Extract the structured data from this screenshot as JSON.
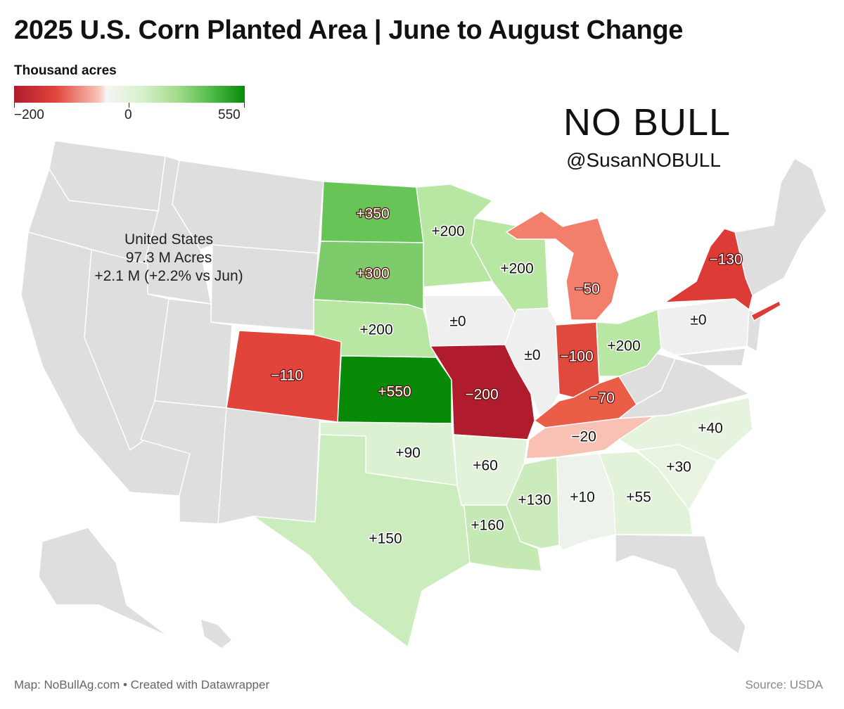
{
  "title": "2025 U.S. Corn Planted Area | June to August Change",
  "legend": {
    "title": "Thousand acres",
    "min_label": "−200",
    "mid_label": "0",
    "max_label": "550",
    "min": -200,
    "max": 550
  },
  "brand": {
    "name": "NO BULL",
    "handle": "@SusanNOBULL"
  },
  "summary": {
    "line1": "United States",
    "line2": "97.3 M Acres",
    "line3": "+2.1 M (+2.2% vs Jun)"
  },
  "colors": {
    "no_data": "#dedede",
    "no_change": "#efefef",
    "border": "#ffffff"
  },
  "states": [
    {
      "id": "ND",
      "label": "+350",
      "value": 350,
      "color": "#67c457"
    },
    {
      "id": "SD",
      "label": "+300",
      "value": 300,
      "color": "#7ecb6c"
    },
    {
      "id": "MN",
      "label": "+200",
      "value": 200,
      "color": "#b8e6a3"
    },
    {
      "id": "WI",
      "label": "+200",
      "value": 200,
      "color": "#b8e6a3"
    },
    {
      "id": "NE",
      "label": "+200",
      "value": 200,
      "color": "#b8e6a3"
    },
    {
      "id": "OH",
      "label": "+200",
      "value": 200,
      "color": "#b8e6a3"
    },
    {
      "id": "KS",
      "label": "+550",
      "value": 550,
      "color": "#088a08"
    },
    {
      "id": "IA",
      "label": "±0",
      "value": 0,
      "color": "#efefef"
    },
    {
      "id": "IL",
      "label": "±0",
      "value": 0,
      "color": "#efefef"
    },
    {
      "id": "PA",
      "label": "±0",
      "value": 0,
      "color": "#efefef"
    },
    {
      "id": "MO",
      "label": "−200",
      "value": -200,
      "color": "#b01c2e"
    },
    {
      "id": "CO",
      "label": "−110",
      "value": -110,
      "color": "#e1443a"
    },
    {
      "id": "IN",
      "label": "−100",
      "value": -100,
      "color": "#e04a3c"
    },
    {
      "id": "NY",
      "label": "−130",
      "value": -130,
      "color": "#dd3b35"
    },
    {
      "id": "KY",
      "label": "−70",
      "value": -70,
      "color": "#ea5e48"
    },
    {
      "id": "MI",
      "label": "−50",
      "value": -50,
      "color": "#f27f6b"
    },
    {
      "id": "TN",
      "label": "−20",
      "value": -20,
      "color": "#f9c1b3"
    },
    {
      "id": "OK",
      "label": "+90",
      "value": 90,
      "color": "#dcf1d1"
    },
    {
      "id": "AR",
      "label": "+60",
      "value": 60,
      "color": "#e3f3d9"
    },
    {
      "id": "MS",
      "label": "+130",
      "value": 130,
      "color": "#cbebbc"
    },
    {
      "id": "AL",
      "label": "+10",
      "value": 10,
      "color": "#edf2ea"
    },
    {
      "id": "GA",
      "label": "+55",
      "value": 55,
      "color": "#e3f3d9"
    },
    {
      "id": "SC",
      "label": "+30",
      "value": 30,
      "color": "#e8f4e1"
    },
    {
      "id": "NC",
      "label": "+40",
      "value": 40,
      "color": "#e6f3de"
    },
    {
      "id": "LA",
      "label": "+160",
      "value": 160,
      "color": "#c4e9b3"
    },
    {
      "id": "TX",
      "label": "+150",
      "value": 150,
      "color": "#cbecbd"
    }
  ],
  "footer": {
    "left": "Map: NoBullAg.com • Created with Datawrapper",
    "right": "Source: USDA"
  }
}
